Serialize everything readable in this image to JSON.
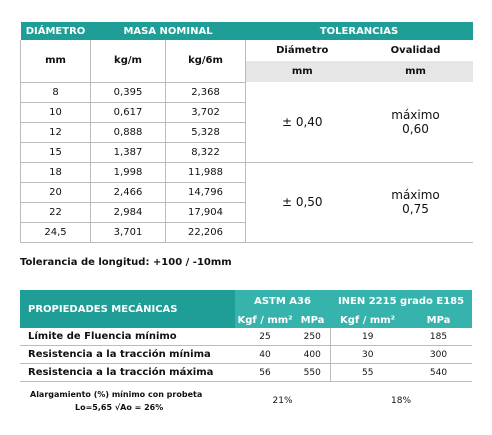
{
  "table1": {
    "header": [
      "DIÁMETRO",
      "MASA NOMINAL",
      "TOLERANCIAS"
    ],
    "subheader": [
      "mm",
      "kg/m",
      "kg/6m",
      "Diámetro",
      "Ovalidad"
    ],
    "units": [
      "mm",
      "mm"
    ],
    "rows": [
      [
        "8",
        "0,395",
        "2,368"
      ],
      [
        "10",
        "0,617",
        "3,702"
      ],
      [
        "12",
        "0,888",
        "5,328"
      ],
      [
        "15",
        "1,387",
        "8,322"
      ],
      [
        "18",
        "1,998",
        "11,988"
      ],
      [
        "20",
        "2,466",
        "14,796"
      ],
      [
        "22",
        "2,984",
        "17,904"
      ],
      [
        "24,5",
        "3,701",
        "22,206"
      ]
    ],
    "groups": [
      {
        "diameter": "± 0,40",
        "ovality": "máximo 0,60"
      },
      {
        "diameter": "± 0,50",
        "ovality": "máximo 0,75"
      }
    ]
  },
  "note": "Tolerancia de longitud: +100 / -10mm",
  "table2": {
    "header": [
      "PROPIEDADES MECÁNICAS",
      "ASTM A36",
      "INEN 2215 grado E185"
    ],
    "subheader": [
      "Kgf / mm²",
      "MPa",
      "Kgf / mm²",
      "MPa"
    ],
    "rows": [
      [
        "Límite de Fluencia mínimo",
        "25",
        "250",
        "19",
        "185"
      ],
      [
        "Resistencia a la tracción mínima",
        "40",
        "400",
        "30",
        "300"
      ],
      [
        "Resistencia a la tracción máxima",
        "56",
        "550",
        "55",
        "540"
      ]
    ],
    "elongation": {
      "label": [
        "Alargamiento (%) mínimo con probeta",
        "Lo=5,65 √Ao = 26%"
      ],
      "values": [
        "21%",
        "18%"
      ]
    }
  }
}
